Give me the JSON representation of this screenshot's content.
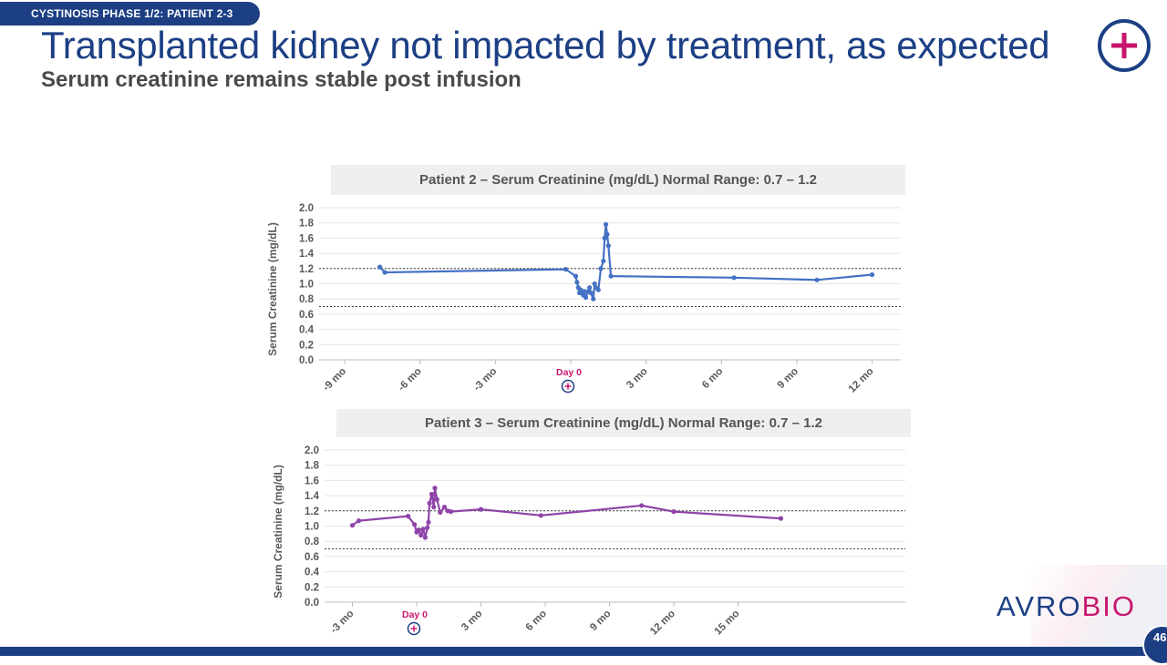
{
  "header": {
    "tag": "CYSTINOSIS PHASE 1/2: PATIENT 2-3",
    "title": "Transplanted kidney not impacted by treatment, as expected",
    "subtitle": "Serum creatinine remains stable post infusion"
  },
  "colors": {
    "brand_blue": "#1c3f84",
    "brand_magenta": "#c8166e",
    "patient2": "#4472c4",
    "patient3": "#8e44a8"
  },
  "brand": {
    "part1": "AVRO",
    "part2": "BIO"
  },
  "page_number": "46",
  "chart_data": [
    {
      "type": "line",
      "title": "Patient 2 – Serum Creatinine (mg/dL) Normal Range: 0.7 – 1.2",
      "xlabel": "",
      "ylabel": "Serum Creatinine (mg/dL)",
      "ylim": [
        0,
        2.0
      ],
      "yticks": [
        "0.0",
        "0.2",
        "0.4",
        "0.6",
        "0.8",
        "1.0",
        "1.2",
        "1.4",
        "1.6",
        "1.8",
        "2.0"
      ],
      "xlim": [
        -10,
        13
      ],
      "xticks": [
        {
          "v": -9,
          "label": "-9 mo"
        },
        {
          "v": -6,
          "label": "-6 mo"
        },
        {
          "v": -3,
          "label": "-3 mo"
        },
        {
          "v": 3,
          "label": "3 mo"
        },
        {
          "v": 6,
          "label": "6 mo"
        },
        {
          "v": 9,
          "label": "9 mo"
        },
        {
          "v": 12,
          "label": "12 mo"
        }
      ],
      "day0_label": "Day 0",
      "reference_lines": [
        0.7,
        1.2
      ],
      "grid": true,
      "series": [
        {
          "name": "Patient 2",
          "x": [
            -7.6,
            -7.4,
            -0.2,
            0.2,
            0.25,
            0.3,
            0.35,
            0.4,
            0.5,
            0.55,
            0.6,
            0.7,
            0.75,
            0.8,
            0.9,
            0.95,
            1.0,
            1.1,
            1.2,
            1.3,
            1.35,
            1.4,
            1.45,
            1.5,
            1.6,
            6.5,
            9.8,
            12.0
          ],
          "values": [
            1.22,
            1.15,
            1.19,
            1.1,
            1.02,
            0.95,
            0.88,
            0.92,
            0.85,
            0.9,
            0.82,
            0.9,
            0.95,
            0.88,
            0.8,
            1.0,
            0.95,
            0.92,
            1.2,
            1.3,
            1.6,
            1.78,
            1.65,
            1.5,
            1.1,
            1.08,
            1.05,
            1.12
          ]
        }
      ]
    },
    {
      "type": "line",
      "title": "Patient 3 – Serum Creatinine (mg/dL) Normal Range: 0.7 – 1.2",
      "xlabel": "",
      "ylabel": "Serum Creatinine (mg/dL)",
      "ylim": [
        0,
        2.0
      ],
      "yticks": [
        "0.0",
        "0.2",
        "0.4",
        "0.6",
        "0.8",
        "1.0",
        "1.2",
        "1.4",
        "1.6",
        "1.8",
        "2.0"
      ],
      "xlim": [
        -5.5,
        17.5
      ],
      "xticks": [
        {
          "v": -3,
          "label": "-3 mo"
        },
        {
          "v": 3,
          "label": "3 mo"
        },
        {
          "v": 6,
          "label": "6 mo"
        },
        {
          "v": 9,
          "label": "9 mo"
        },
        {
          "v": 12,
          "label": "12 mo"
        },
        {
          "v": 15,
          "label": "15 mo"
        }
      ],
      "day0_label": "Day 0",
      "reference_lines": [
        0.7,
        1.2
      ],
      "grid": true,
      "series": [
        {
          "name": "Patient 3",
          "x": [
            -3.0,
            -2.7,
            -0.4,
            -0.1,
            0.0,
            0.1,
            0.2,
            0.3,
            0.4,
            0.5,
            0.55,
            0.6,
            0.7,
            0.8,
            0.85,
            0.95,
            1.1,
            1.3,
            1.45,
            1.6,
            3.0,
            5.8,
            10.5,
            12.0,
            17.0
          ],
          "values": [
            1.01,
            1.07,
            1.13,
            1.02,
            0.92,
            0.95,
            0.88,
            0.96,
            0.85,
            0.98,
            1.05,
            1.3,
            1.42,
            1.25,
            1.5,
            1.35,
            1.18,
            1.25,
            1.2,
            1.19,
            1.22,
            1.14,
            1.27,
            1.19,
            1.1
          ]
        }
      ]
    }
  ]
}
